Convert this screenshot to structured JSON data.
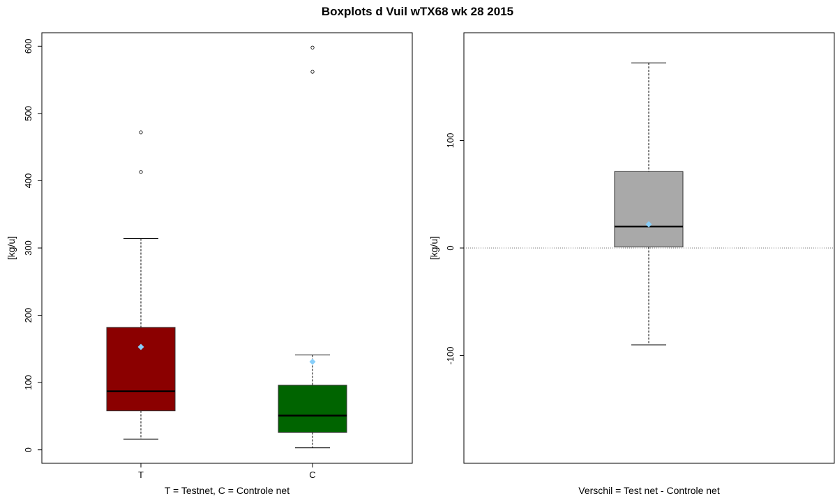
{
  "title": "Boxplots d Vuil wTX68 wk 28 2015",
  "chart_data": [
    {
      "type": "boxplot",
      "ylabel": "[kg/u]",
      "xlabel": "T = Testnet, C = Controle net",
      "ylim": [
        -20,
        620
      ],
      "yticks": [
        0,
        100,
        200,
        300,
        400,
        500,
        600
      ],
      "categories": [
        "T",
        "C"
      ],
      "boxes": [
        {
          "category": "T",
          "color": "#8b0000",
          "whisker_low": 16,
          "q1": 58,
          "median": 87,
          "q3": 182,
          "whisker_high": 314,
          "mean": 153,
          "outliers": [
            413,
            472
          ]
        },
        {
          "category": "C",
          "color": "#006400",
          "whisker_low": 3,
          "q1": 26,
          "median": 51,
          "q3": 96,
          "whisker_high": 141,
          "mean": 131,
          "outliers": [
            562,
            598
          ]
        }
      ],
      "mean_marker_color": "#87cefa",
      "grid": false
    },
    {
      "type": "boxplot",
      "ylabel": "[kg/u]",
      "xlabel": "Verschil = Test net - Controle net",
      "ylim": [
        -200,
        200
      ],
      "yticks": [
        -100,
        0,
        100
      ],
      "reference_line": 0,
      "boxes": [
        {
          "category": "",
          "color": "#a9a9a9",
          "whisker_low": -90,
          "q1": 1,
          "median": 20,
          "q3": 71,
          "whisker_high": 172,
          "mean": 22,
          "outliers": []
        }
      ],
      "mean_marker_color": "#87cefa",
      "grid": false
    }
  ]
}
